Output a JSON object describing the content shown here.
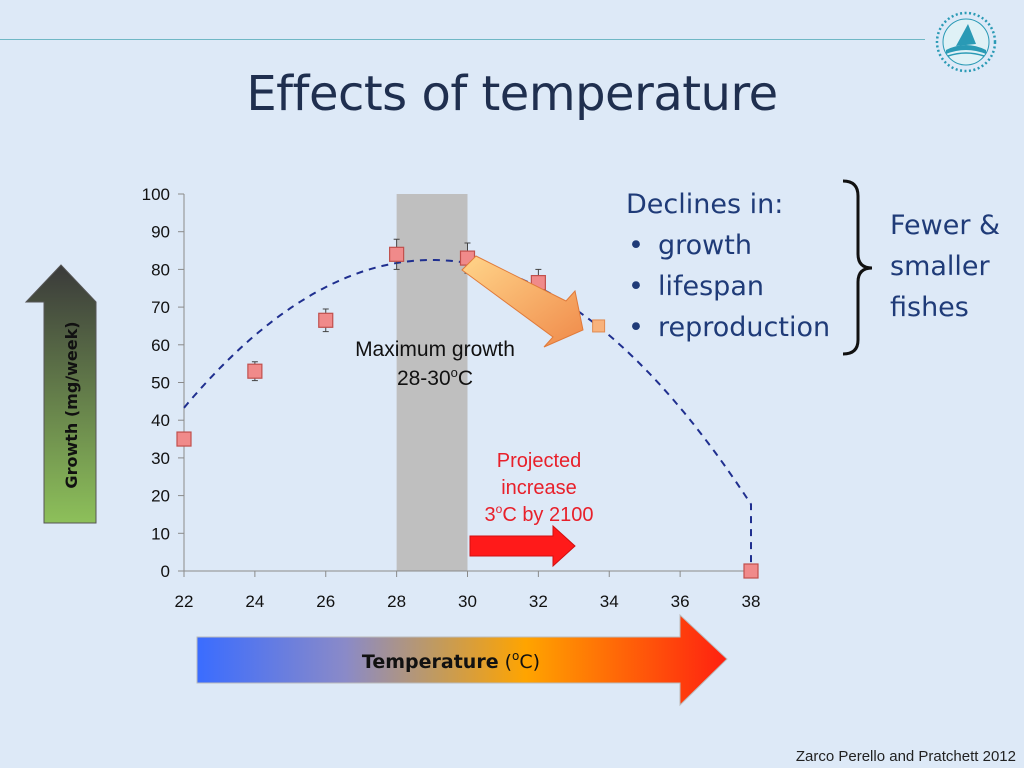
{
  "slide": {
    "title": "Effects of temperature",
    "citation": "Zarco Perello and Pratchett 2012",
    "logo_icon": "circular-fish-logo-icon"
  },
  "annotations": {
    "max_growth_line1": "Maximum growth",
    "max_growth_line2": "28-30",
    "max_growth_sup": "o",
    "max_growth_unit": "C",
    "projected_line1": "Projected",
    "projected_line2": "increase",
    "projected_line3_num": "3",
    "projected_line3_sup": "o",
    "projected_line3_rest": "C by 2100",
    "temperature_label": "Temperature",
    "temperature_unit_open": " (",
    "temperature_unit_sup": "o",
    "temperature_unit_close": "C)"
  },
  "declines": {
    "heading": "Declines in:",
    "items": [
      "growth",
      "lifespan",
      "reproduction"
    ]
  },
  "fewer": {
    "lines": [
      "Fewer &",
      "smaller",
      "fishes"
    ]
  },
  "colors": {
    "marker_fill": "#f08a8a",
    "marker_stroke": "#c0504d",
    "projected_marker_fill": "#f8b27c",
    "curve": "#1f2f8f",
    "highlight_band": "#bfbfbf",
    "projected_text": "#e8202a",
    "growth_arrow_top": "#3a3a3a",
    "growth_arrow_bottom": "#8dc05a"
  },
  "chart_data": {
    "type": "scatter",
    "ylabel": "Growth (mg/week)",
    "xlim": [
      22,
      38
    ],
    "ylim": [
      0,
      100
    ],
    "xticks": [
      22,
      24,
      26,
      28,
      30,
      32,
      34,
      36,
      38
    ],
    "yticks": [
      0,
      10,
      20,
      30,
      40,
      50,
      60,
      70,
      80,
      90,
      100
    ],
    "points": [
      {
        "x": 22,
        "y": 35,
        "err": 0
      },
      {
        "x": 24,
        "y": 53,
        "err": 2.5
      },
      {
        "x": 26,
        "y": 66.5,
        "err": 3
      },
      {
        "x": 28,
        "y": 84,
        "err": 4
      },
      {
        "x": 30,
        "y": 83,
        "err": 4
      },
      {
        "x": 32,
        "y": 76.5,
        "err": 3.5
      },
      {
        "x": 38,
        "y": 0,
        "err": 0
      }
    ],
    "projected_point": {
      "x": 33.7,
      "y": 65
    },
    "fit_curve": {
      "type": "quadratic",
      "vertex_x": 29,
      "vertex_y": 82.5,
      "a": -0.8
    },
    "highlight_range": [
      28,
      30
    ],
    "grid": false
  }
}
